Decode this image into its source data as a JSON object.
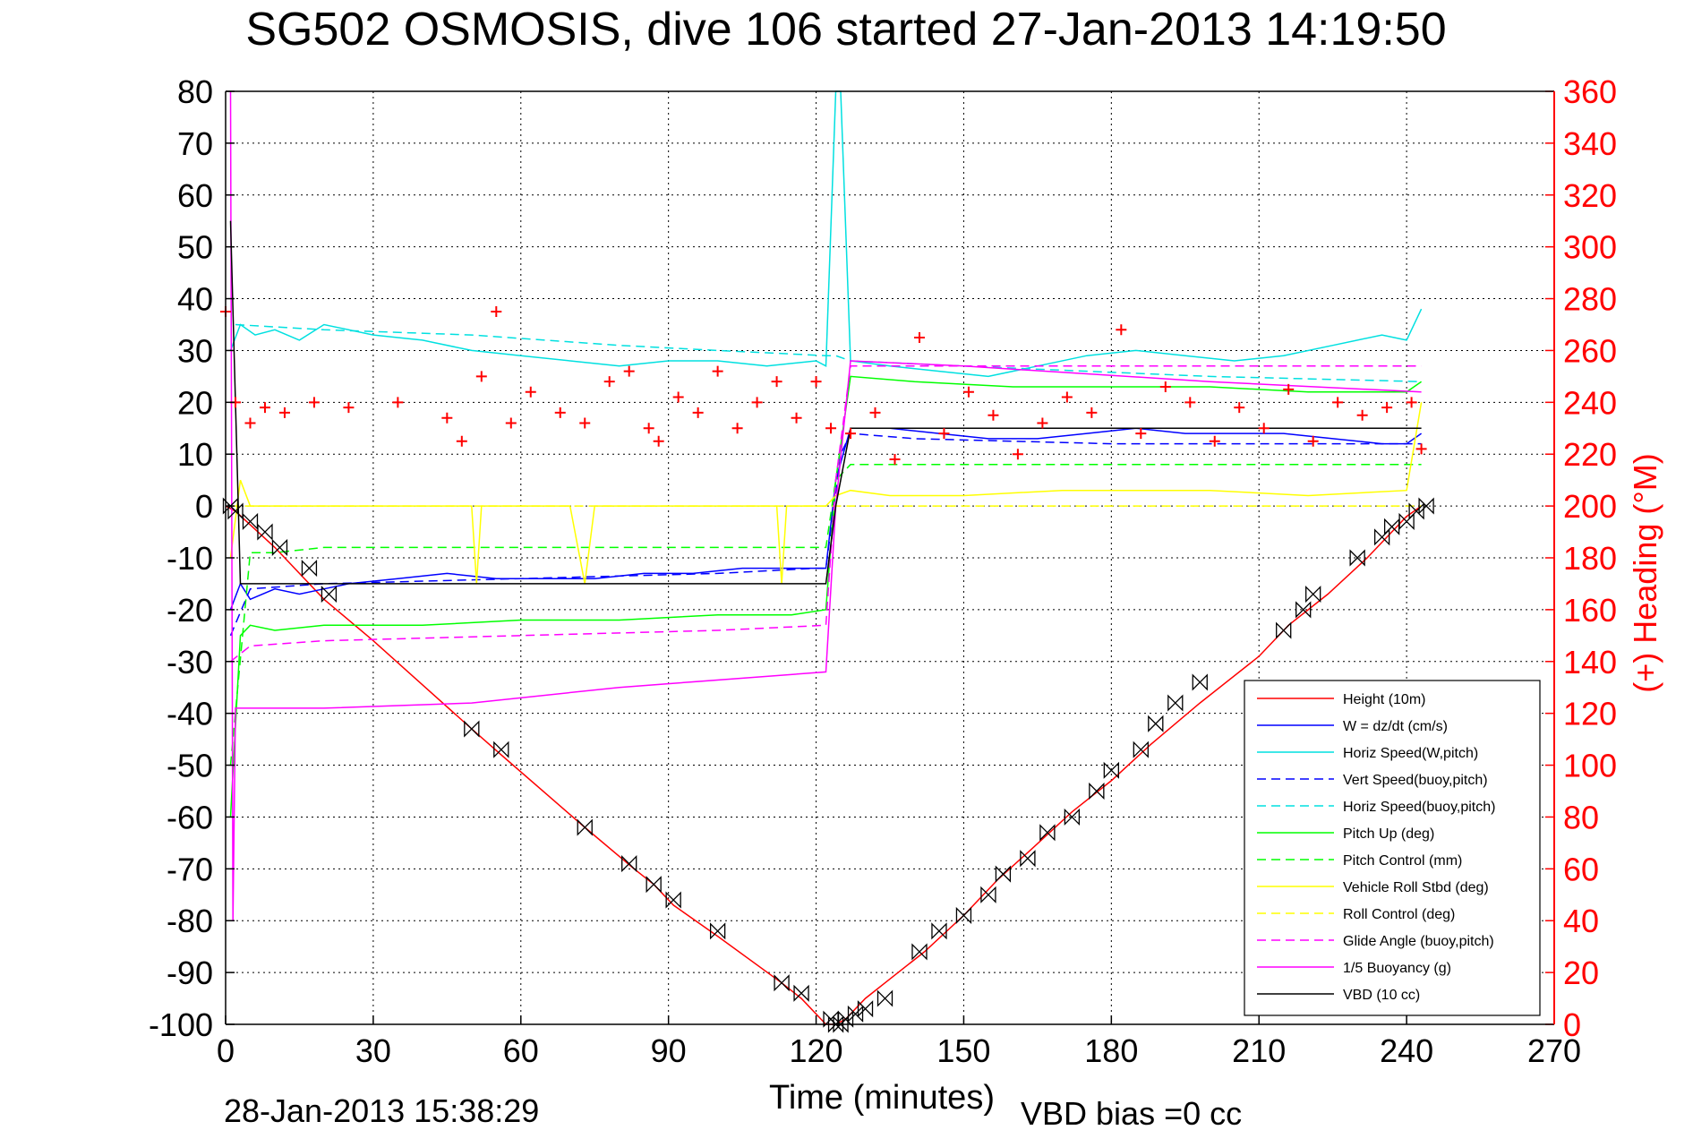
{
  "chart_data": {
    "type": "line",
    "title": "SG502 OSMOSIS, dive 106 started 27-Jan-2013 14:19:50",
    "xlabel": "Time (minutes)",
    "ylabel_right": "(+) Heading (°M)",
    "footer_left": "28-Jan-2013 15:38:29",
    "footer_right": "VBD bias =0 cc",
    "xlim": [
      0,
      270
    ],
    "ylim_left": [
      -100,
      80
    ],
    "ylim_right": [
      0,
      360
    ],
    "xticks": [
      "0",
      "30",
      "60",
      "90",
      "120",
      "150",
      "180",
      "210",
      "240",
      "270"
    ],
    "yticks_left": [
      "80",
      "70",
      "60",
      "50",
      "40",
      "30",
      "20",
      "10",
      "0",
      "-10",
      "-20",
      "-30",
      "-40",
      "-50",
      "-60",
      "-70",
      "-80",
      "-90",
      "-100"
    ],
    "yticks_right": [
      "360",
      "340",
      "320",
      "300",
      "280",
      "260",
      "240",
      "220",
      "200",
      "180",
      "160",
      "140",
      "120",
      "100",
      "80",
      "60",
      "40",
      "20",
      "0"
    ],
    "grid": true,
    "legend_position": "bottom-right",
    "series": [
      {
        "name": "Height (10m)",
        "color": "#ff0000",
        "style": "solid",
        "x": [
          0,
          2,
          10,
          20,
          30,
          50,
          56,
          73,
          83,
          87,
          91,
          100,
          113,
          117,
          122,
          124,
          126,
          130,
          134,
          142,
          150,
          157,
          164,
          172,
          180,
          188,
          198,
          210,
          216,
          224,
          232,
          240,
          243
        ],
        "y": [
          0,
          -1,
          -8,
          -18,
          -26,
          -43,
          -48,
          -62,
          -70,
          -73,
          -77,
          -83,
          -92,
          -95,
          -100,
          -100,
          -99,
          -95,
          -92,
          -86,
          -79,
          -72,
          -66,
          -59,
          -53,
          -46,
          -38,
          -29,
          -23,
          -17,
          -10,
          -2,
          0
        ]
      },
      {
        "name": "W = dz/dt (cm/s)",
        "color": "#0000ff",
        "style": "solid",
        "x": [
          1,
          3,
          5,
          10,
          15,
          20,
          25,
          35,
          45,
          55,
          65,
          75,
          85,
          95,
          105,
          115,
          122,
          124,
          127,
          135,
          145,
          155,
          165,
          175,
          185,
          195,
          205,
          215,
          225,
          235,
          240,
          243
        ],
        "y": [
          -20,
          -15,
          -18,
          -16,
          -17,
          -16,
          -15,
          -14,
          -13,
          -14,
          -14,
          -14,
          -13,
          -13,
          -12,
          -12,
          -12,
          5,
          15,
          15,
          14,
          13,
          13,
          14,
          15,
          14,
          14,
          14,
          13,
          12,
          12,
          14
        ]
      },
      {
        "name": "Horiz Speed(W,pitch)",
        "color": "#00e0e0",
        "style": "solid",
        "x": [
          1,
          3,
          6,
          10,
          15,
          20,
          30,
          40,
          50,
          60,
          70,
          80,
          90,
          100,
          110,
          120,
          122,
          124,
          125,
          127,
          135,
          145,
          155,
          165,
          175,
          185,
          195,
          205,
          215,
          225,
          235,
          240,
          243
        ],
        "y": [
          30,
          35,
          33,
          34,
          32,
          35,
          33,
          32,
          30,
          29,
          28,
          27,
          28,
          28,
          27,
          28,
          27,
          80,
          80,
          28,
          27,
          26,
          25,
          27,
          29,
          30,
          29,
          28,
          29,
          31,
          33,
          32,
          38
        ]
      },
      {
        "name": "Vert Speed(buoy,pitch)",
        "color": "#0000ff",
        "style": "dashed",
        "x": [
          1,
          5,
          20,
          60,
          100,
          120,
          122,
          125,
          127,
          140,
          180,
          220,
          243
        ],
        "y": [
          -25,
          -16,
          -15,
          -14,
          -13,
          -12,
          -12,
          10,
          14,
          13,
          12,
          12,
          12
        ]
      },
      {
        "name": "Horiz Speed(buoy,pitch)",
        "color": "#00e0e0",
        "style": "dashed",
        "x": [
          2,
          20,
          50,
          80,
          100,
          122,
          124,
          127,
          150,
          200,
          243
        ],
        "y": [
          35,
          34,
          33,
          31,
          30,
          29,
          29,
          28,
          27,
          25,
          24
        ]
      },
      {
        "name": "Pitch Up (deg)",
        "color": "#00ff00",
        "style": "solid",
        "x": [
          1,
          3,
          5,
          10,
          20,
          40,
          60,
          80,
          100,
          115,
          122,
          124,
          127,
          140,
          160,
          180,
          200,
          220,
          240,
          243
        ],
        "y": [
          -60,
          -25,
          -23,
          -24,
          -23,
          -23,
          -22,
          -22,
          -21,
          -21,
          -20,
          5,
          25,
          24,
          23,
          23,
          23,
          22,
          22,
          24
        ]
      },
      {
        "name": "Pitch Control (mm)",
        "color": "#00ff00",
        "style": "dashed",
        "x": [
          1,
          5,
          10,
          20,
          60,
          100,
          122,
          124,
          127,
          140,
          180,
          220,
          243
        ],
        "y": [
          -50,
          -9,
          -9,
          -8,
          -8,
          -8,
          -8,
          5,
          8,
          8,
          8,
          8,
          8
        ]
      },
      {
        "name": "Vehicle Roll Stbd (deg)",
        "color": "#ffff00",
        "style": "solid",
        "x": [
          1,
          3,
          5,
          10,
          20,
          30,
          50,
          51,
          52,
          70,
          73,
          75,
          90,
          112,
          113,
          114,
          122,
          124,
          127,
          135,
          150,
          170,
          200,
          220,
          240,
          243
        ],
        "y": [
          -10,
          5,
          0,
          0,
          0,
          0,
          0,
          -15,
          0,
          0,
          -15,
          0,
          0,
          0,
          -15,
          0,
          0,
          2,
          3,
          2,
          2,
          3,
          3,
          2,
          3,
          20
        ]
      },
      {
        "name": "Roll Control (deg)",
        "color": "#ffff00",
        "style": "dashed",
        "x": [
          1,
          10,
          20,
          60,
          100,
          122,
          125,
          150,
          200,
          243
        ],
        "y": [
          0,
          0,
          0,
          0,
          0,
          0,
          0,
          0,
          0,
          0
        ]
      },
      {
        "name": "Glide Angle (buoy,pitch)",
        "color": "#ff00ff",
        "style": "dashed",
        "x": [
          1,
          5,
          20,
          60,
          100,
          122,
          124,
          127,
          150,
          200,
          243
        ],
        "y": [
          -30,
          -27,
          -26,
          -25,
          -24,
          -23,
          5,
          27,
          27,
          27,
          27
        ]
      },
      {
        "name": "1/5 Buoyancy (g)",
        "color": "#ff00ff",
        "style": "solid",
        "x": [
          1,
          1.5,
          2,
          3,
          20,
          50,
          80,
          122,
          124,
          127,
          150,
          200,
          243
        ],
        "y": [
          80,
          -80,
          -39,
          -39,
          -39,
          -38,
          -35,
          -32,
          0,
          28,
          27,
          24,
          22
        ]
      },
      {
        "name": "VBD (10 cc)",
        "color": "#000000",
        "style": "solid",
        "x": [
          1,
          3,
          5,
          20,
          60,
          100,
          122,
          124,
          127,
          150,
          200,
          243
        ],
        "y": [
          55,
          -15,
          -15,
          -15,
          -15,
          -15,
          -15,
          0,
          15,
          15,
          15,
          15
        ]
      }
    ],
    "heading_series": {
      "name": "Heading",
      "marker": "+",
      "color": "#ff0000",
      "axis": "right",
      "x": [
        0,
        2,
        5,
        8,
        12,
        18,
        25,
        35,
        45,
        48,
        52,
        55,
        58,
        62,
        68,
        73,
        78,
        82,
        86,
        88,
        92,
        96,
        100,
        104,
        108,
        112,
        116,
        120,
        123,
        127,
        132,
        136,
        141,
        146,
        151,
        156,
        161,
        166,
        171,
        176,
        182,
        186,
        191,
        196,
        201,
        206,
        211,
        216,
        221,
        226,
        231,
        236,
        241,
        243
      ],
      "y": [
        275,
        240,
        232,
        238,
        236,
        240,
        238,
        240,
        234,
        225,
        250,
        275,
        232,
        244,
        236,
        232,
        248,
        252,
        230,
        225,
        242,
        236,
        252,
        230,
        240,
        248,
        234,
        248,
        230,
        228,
        236,
        218,
        265,
        228,
        244,
        235,
        220,
        232,
        242,
        236,
        268,
        228,
        246,
        240,
        225,
        238,
        230,
        245,
        225,
        240,
        235,
        238,
        240,
        222
      ]
    },
    "depth_markers": {
      "marker": "bowtie",
      "color": "#000000",
      "x": [
        1,
        2,
        5,
        8,
        11,
        17,
        21,
        50,
        56,
        73,
        82,
        87,
        91,
        100,
        113,
        117,
        123,
        124,
        125,
        126,
        128,
        130,
        134,
        141,
        145,
        150,
        155,
        158,
        163,
        167,
        172,
        177,
        180,
        186,
        189,
        193,
        198,
        215,
        219,
        221,
        230,
        235,
        237,
        240,
        242,
        244
      ],
      "y": [
        0,
        -1,
        -3,
        -5,
        -8,
        -12,
        -17,
        -43,
        -47,
        -62,
        -69,
        -73,
        -76,
        -82,
        -92,
        -94,
        -99,
        -100,
        -100,
        -99,
        -98,
        -97,
        -95,
        -86,
        -82,
        -79,
        -75,
        -71,
        -68,
        -63,
        -60,
        -55,
        -51,
        -47,
        -42,
        -38,
        -34,
        -24,
        -20,
        -17,
        -10,
        -6,
        -4,
        -3,
        -1,
        0
      ]
    }
  }
}
